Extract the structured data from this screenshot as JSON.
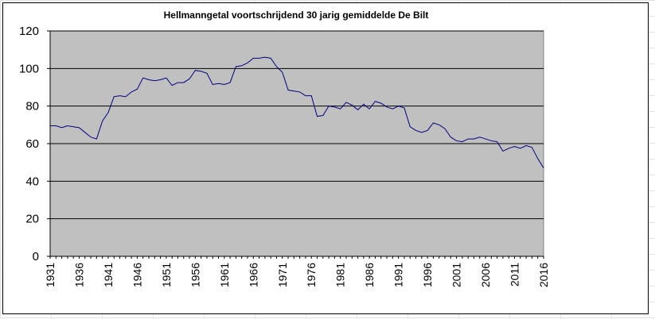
{
  "chart_data": {
    "type": "line",
    "title": "Hellmanngetal voortschrijdend 30 jarig gemiddelde De Bilt",
    "xlabel": "",
    "ylabel": "",
    "ylim": [
      0,
      120
    ],
    "yticks": [
      0,
      20,
      40,
      60,
      80,
      100,
      120
    ],
    "xlim": [
      1931,
      2016
    ],
    "x_tick_labels": [
      "1931",
      "1936",
      "1941",
      "1946",
      "1951",
      "1956",
      "1961",
      "1966",
      "1971",
      "1976",
      "1981",
      "1986",
      "1991",
      "1996",
      "2001",
      "2006",
      "2011",
      "2016"
    ],
    "grid": true,
    "legend": "none",
    "plot_background": "#c0c0c0",
    "line_color": "#000080",
    "series": [
      {
        "x": [
          1931,
          1932,
          1933,
          1934,
          1935,
          1936,
          1937,
          1938,
          1939,
          1940,
          1941,
          1942,
          1943,
          1944,
          1945,
          1946,
          1947,
          1948,
          1949,
          1950,
          1951,
          1952,
          1953,
          1954,
          1955,
          1956,
          1957,
          1958,
          1959,
          1960,
          1961,
          1962,
          1963,
          1964,
          1965,
          1966,
          1967,
          1968,
          1969,
          1970,
          1971,
          1972,
          1973,
          1974,
          1975,
          1976,
          1977,
          1978,
          1979,
          1980,
          1981,
          1982,
          1983,
          1984,
          1985,
          1986,
          1987,
          1988,
          1989,
          1990,
          1991,
          1992,
          1993,
          1994,
          1995,
          1996,
          1997,
          1998,
          1999,
          2000,
          2001,
          2002,
          2003,
          2004,
          2005,
          2006,
          2007,
          2008,
          2009,
          2010,
          2011,
          2012,
          2013,
          2014,
          2015,
          2016
        ],
        "y": [
          69.5,
          69.5,
          68.5,
          69.5,
          69,
          68.5,
          66,
          63.5,
          62.5,
          72,
          76.5,
          85,
          85.5,
          85,
          87.5,
          89,
          95,
          94,
          93.5,
          94,
          95,
          91,
          92.5,
          92.5,
          94.5,
          99,
          98.5,
          97.5,
          91.5,
          92,
          91.5,
          92.5,
          101,
          101.5,
          103,
          105.5,
          105.5,
          106,
          105.5,
          101,
          98,
          88.5,
          88,
          87.5,
          85.5,
          85.5,
          74.5,
          75,
          80,
          79.5,
          78.5,
          82,
          80.5,
          78,
          81,
          78.5,
          82.5,
          81.5,
          79.5,
          78.5,
          80,
          79,
          69,
          67,
          66,
          67,
          71,
          70,
          68,
          63.5,
          61.5,
          61,
          62.5,
          62.5,
          63.5,
          62.5,
          61.5,
          61,
          56,
          57.5,
          58.5,
          57.5,
          59,
          58,
          52,
          47
        ]
      }
    ]
  }
}
